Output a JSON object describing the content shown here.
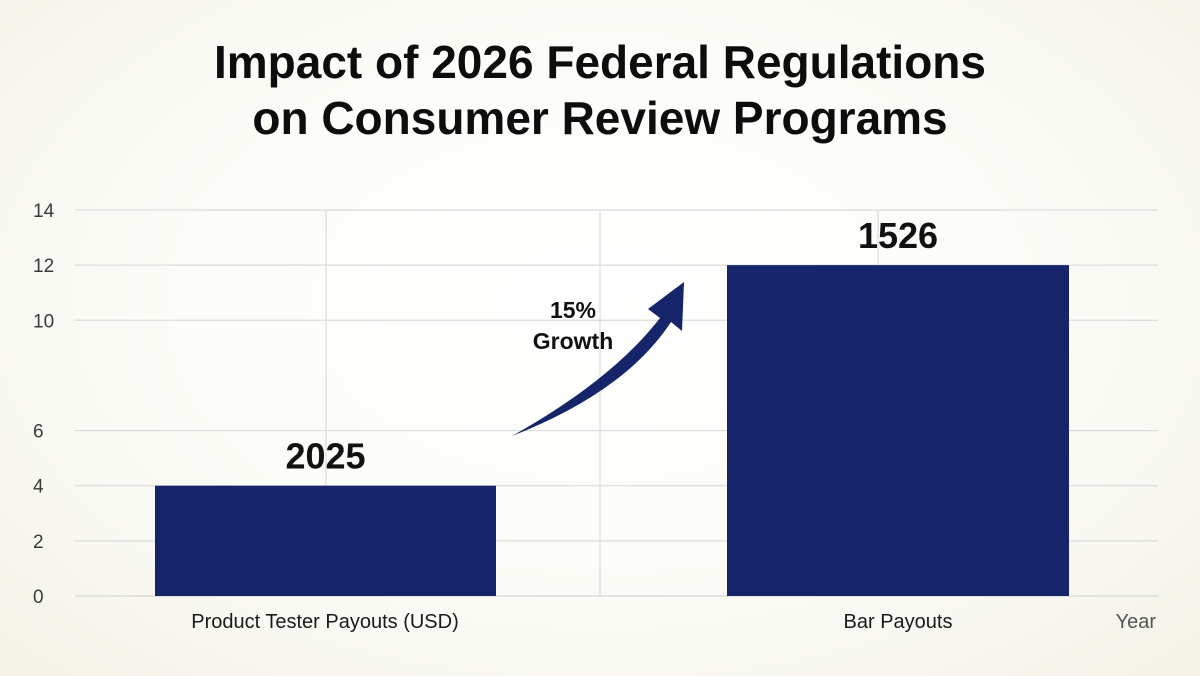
{
  "chart_data": {
    "type": "bar",
    "title": [
      "Impact of 2026 Federal Regulations",
      "on Consumer Review Programs"
    ],
    "categories": [
      "Product Tester Payouts (USD)",
      "Bar Payouts"
    ],
    "values": [
      4,
      12
    ],
    "data_labels": [
      "2025",
      "1526"
    ],
    "annotation": [
      "15%",
      "Growth"
    ],
    "xlabel": "Year",
    "ylabel": "",
    "ylim": [
      0,
      14
    ],
    "yticks": [
      0,
      2,
      4,
      6,
      10,
      12,
      14
    ],
    "grid": true,
    "bar_color": "#16246a",
    "arrow_color": "#16246a",
    "grid_color": "#dcdcdc"
  }
}
